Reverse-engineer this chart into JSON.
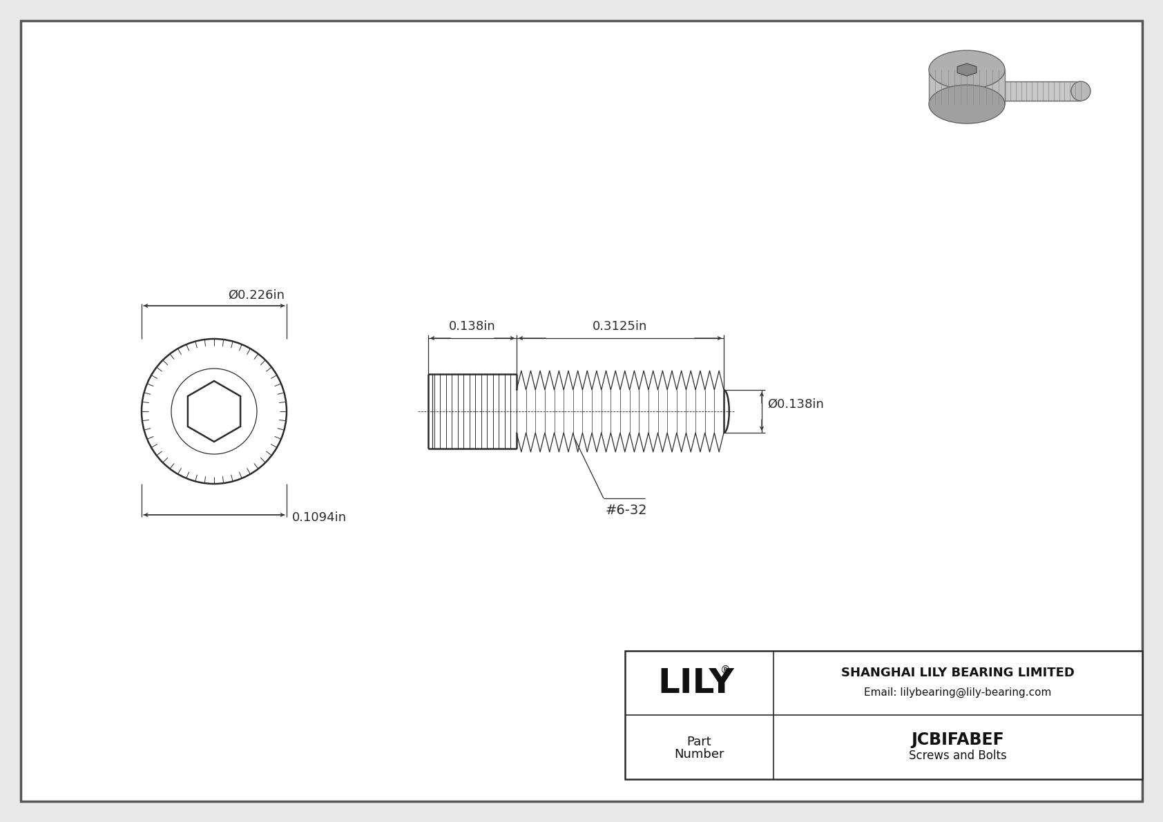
{
  "bg_color": "#e8e8e8",
  "drawing_bg": "#ffffff",
  "border_color": "#555555",
  "line_color": "#2a2a2a",
  "dim_color": "#2a2a2a",
  "title_company": "SHANGHAI LILY BEARING LIMITED",
  "title_email": "Email: lilybearing@lily-bearing.com",
  "part_number": "JCBIFABEF",
  "part_category": "Screws and Bolts",
  "lily_logo": "LILY",
  "dim_head_diameter": "Ø0.226in",
  "dim_head_length": "0.1094in",
  "dim_shaft_head_len": "0.138in",
  "dim_shaft_thread_len": "0.3125in",
  "dim_shaft_diameter": "Ø0.138in",
  "dim_thread_label": "#6-32",
  "fig_width": 16.84,
  "fig_height": 11.91,
  "dpi": 100
}
